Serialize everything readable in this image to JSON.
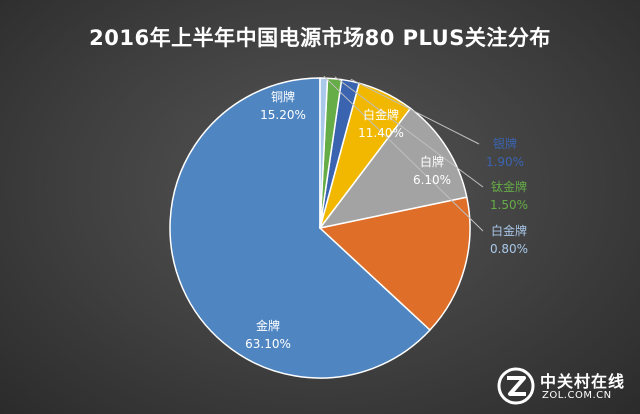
{
  "chart_data": {
    "type": "pie",
    "title": "2016年上半年中国电源市场80 PLUS关注分布",
    "slices": [
      {
        "name": "金牌",
        "value": 63.1,
        "label": "63.10%",
        "color": "#4f86c2"
      },
      {
        "name": "铜牌",
        "value": 15.2,
        "label": "15.20%",
        "color": "#de6e28"
      },
      {
        "name": "白金牌",
        "value": 11.4,
        "label": "11.40%",
        "color": "#a3a3a3"
      },
      {
        "name": "白牌",
        "value": 6.1,
        "label": "6.10%",
        "color": "#f2b800"
      },
      {
        "name": "银牌",
        "value": 1.9,
        "label": "1.90%",
        "color": "#3a64b0"
      },
      {
        "name": "钛金牌",
        "value": 1.5,
        "label": "1.50%",
        "color": "#66ac47"
      },
      {
        "name": "白金牌",
        "value": 0.8,
        "label": "0.80%",
        "color": "#a9c8ea"
      }
    ],
    "start_angle_deg": 90,
    "direction": "counterclockwise",
    "legend": "none",
    "label_color": "#ffffff"
  },
  "watermark": {
    "name": "中关村在线",
    "url": "ZOL.COM.CN"
  }
}
